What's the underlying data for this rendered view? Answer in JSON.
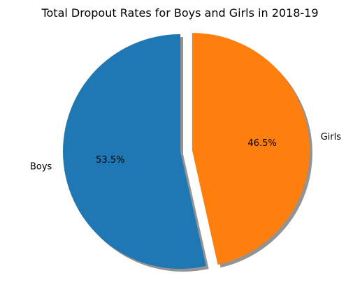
{
  "chart_data": {
    "type": "pie",
    "title": "Total Dropout Rates for Boys and Girls in 2018-19",
    "slices": [
      {
        "label": "Boys",
        "value": 53.5,
        "pct_label": "53.5%",
        "color": "#1f77b4",
        "exploded": false
      },
      {
        "label": "Girls",
        "value": 46.5,
        "pct_label": "46.5%",
        "color": "#ff7f0e",
        "exploded": true
      }
    ],
    "start_angle_deg": 90,
    "direction": "counterclockwise",
    "shadow": true,
    "legend": "none"
  }
}
